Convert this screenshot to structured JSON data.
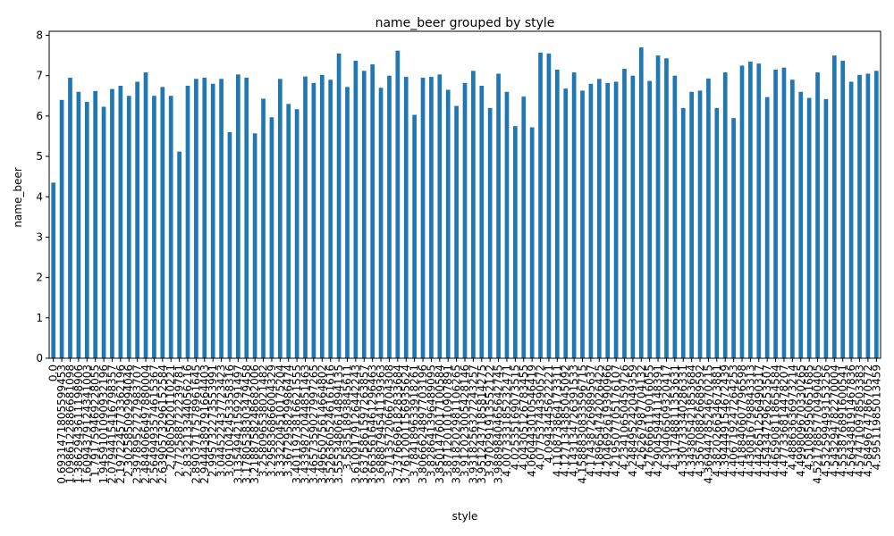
{
  "chart_data": {
    "type": "bar",
    "title": "name_beer grouped by style",
    "x_label": "style",
    "y_label": "name_beer",
    "categories": [
      "0.0",
      "0.6931471805599453",
      "1.0986122886681098",
      "1.3862943611198906",
      "1.6094379124341003",
      "1.791759469228055",
      "1.9459101090932196",
      "2.0794415416798357",
      "2.1972245773362196",
      "2.302585092994046",
      "2.3978952727983707",
      "2.4849066497880004",
      "2.5649493574615367",
      "2.6390573296152584",
      "2.70805020110221",
      "2.772588722239781",
      "2.833213344056216",
      "2.8903717578961645",
      "2.9444389791664403",
      "2.995732273553991",
      "3.044522437723423",
      "3.091042453358316",
      "3.1354942159291497",
      "3.1780538303479458",
      "3.2188758248682006",
      "3.258096538021482",
      "3.295836866004329",
      "3.332204510175204",
      "3.367295829986474",
      "3.4011973816621555",
      "3.4339872044851463",
      "3.4657359027997265",
      "3.4965075614664802",
      "3.5263605246161616",
      "3.5553480614894135",
      "3.58351893845611",
      "3.6109179126442243",
      "3.6375861597263857",
      "3.6635616461296463",
      "3.6888794541139363",
      "3.713572066704308",
      "3.7376696182833684",
      "3.7612001156935624",
      "3.784189633918261",
      "3.8066624897703196",
      "3.828641396489095",
      "3.8501476017100584",
      "3.871201010907891",
      "3.8918202981106265",
      "3.912023005428146",
      "3.9318256327243257",
      "3.9512437185814275",
      "3.970291913552122",
      "3.9889840465642745",
      "4.007333185232471",
      "4.02535169073515",
      "4.04305126783455",
      "4.060443010546419",
      "4.07753744390572",
      "4.0943445622221",
      "4.110873864173311",
      "4.127134385045092",
      "4.143134726391533",
      "4.1588830833596715",
      "4.174387269895637",
      "4.189654742026425",
      "4.204692619390966",
      "4.219507705176107",
      "4.23410650459726",
      "4.248495242049359",
      "4.26267987704132",
      "4.276666119016055",
      "4.290459441148391",
      "4.30406509320417",
      "4.31748811353631",
      "4.330733340286331",
      "4.343805421853684",
      "4.356708826689592",
      "4.3694478524670215",
      "4.382026634673881",
      "4.394449154672439",
      "4.406719247264253",
      "4.418840607796598",
      "4.430816798843313",
      "4.442651256490317",
      "4.454347296253507",
      "4.465908118654584",
      "4.477336814478207",
      "4.48863636973214",
      "4.499809670330265",
      "4.51085950651685",
      "4.5217885770490405",
      "4.532599493153256",
      "4.543294782270004",
      "4.553876891600541",
      "4.564348191467836",
      "4.574710978503383",
      "4.584967478670572",
      "4.59511985013459"
    ],
    "values": [
      4.35,
      6.4,
      6.95,
      6.6,
      6.35,
      6.62,
      6.23,
      6.67,
      6.75,
      6.5,
      6.85,
      7.08,
      6.5,
      6.72,
      6.5,
      5.12,
      6.75,
      6.92,
      6.95,
      6.8,
      6.92,
      5.6,
      7.03,
      6.95,
      5.57,
      6.43,
      5.97,
      6.92,
      6.3,
      6.17,
      6.98,
      6.82,
      7.02,
      6.9,
      7.55,
      6.72,
      7.37,
      7.12,
      7.28,
      6.7,
      7.0,
      7.62,
      6.97,
      6.03,
      6.95,
      6.97,
      7.03,
      6.65,
      6.25,
      6.82,
      7.12,
      6.75,
      6.2,
      7.05,
      6.6,
      5.75,
      6.48,
      5.72,
      7.57,
      7.55,
      7.15,
      6.68,
      7.08,
      6.63,
      6.8,
      6.92,
      6.82,
      6.85,
      7.17,
      7.0,
      7.7,
      6.87,
      7.5,
      7.43,
      7.0,
      6.2,
      6.6,
      6.63,
      6.93,
      6.2,
      7.08,
      5.95,
      7.25,
      7.35,
      7.3,
      6.47,
      7.15,
      7.2,
      6.9,
      6.6,
      6.45,
      7.08,
      6.42,
      7.5,
      7.37,
      6.85,
      7.02,
      7.05,
      7.12
    ],
    "color": "#1f77b4",
    "ylim": [
      0,
      8.1
    ],
    "yticks": [
      0,
      1,
      2,
      3,
      4,
      5,
      6,
      7,
      8
    ]
  }
}
